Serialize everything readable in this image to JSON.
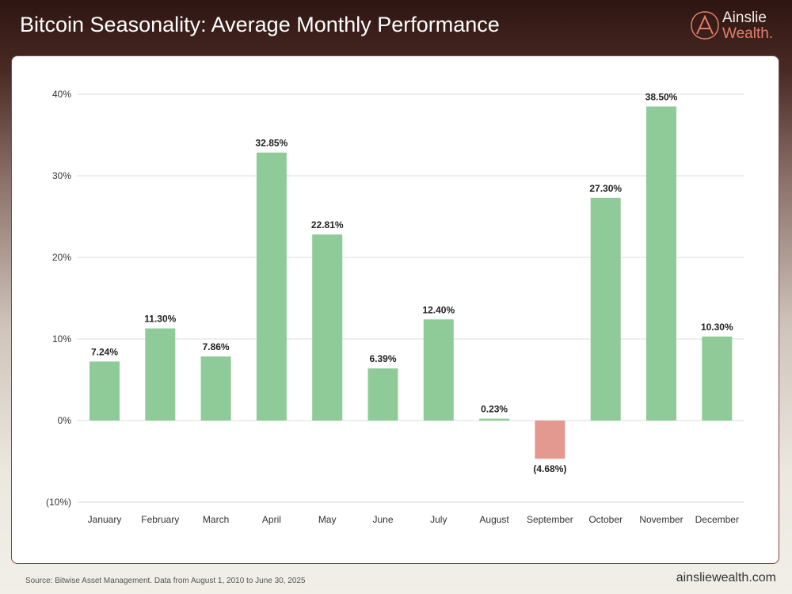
{
  "header": {
    "title": "Bitcoin Seasonality: Average Monthly Performance"
  },
  "logo": {
    "line1": "Ainslie",
    "line2": "Wealth."
  },
  "footer": {
    "source": "Source: Bitwise Asset Management. Data from August 1, 2010 to June 30, 2025",
    "website": "ainsliewealth.com"
  },
  "chart_data": {
    "type": "bar",
    "title": "Bitcoin Seasonality: Average Monthly Performance",
    "categories": [
      "January",
      "February",
      "March",
      "April",
      "May",
      "June",
      "July",
      "August",
      "September",
      "October",
      "November",
      "December"
    ],
    "values": [
      7.24,
      11.3,
      7.86,
      32.85,
      22.81,
      6.39,
      12.4,
      0.23,
      -4.68,
      27.3,
      38.5,
      10.3
    ],
    "data_labels": [
      "7.24%",
      "11.30%",
      "7.86%",
      "32.85%",
      "22.81%",
      "6.39%",
      "12.40%",
      "0.23%",
      "(4.68%)",
      "27.30%",
      "38.50%",
      "10.30%"
    ],
    "y_ticks": [
      40,
      30,
      20,
      10,
      0,
      -10
    ],
    "y_tick_labels": [
      "40%",
      "30%",
      "20%",
      "10%",
      "0%",
      "(10%)"
    ],
    "ylim": [
      -10,
      40
    ],
    "grid": true,
    "colors": {
      "positive": "#8fcb98",
      "negative": "#e39890"
    }
  }
}
